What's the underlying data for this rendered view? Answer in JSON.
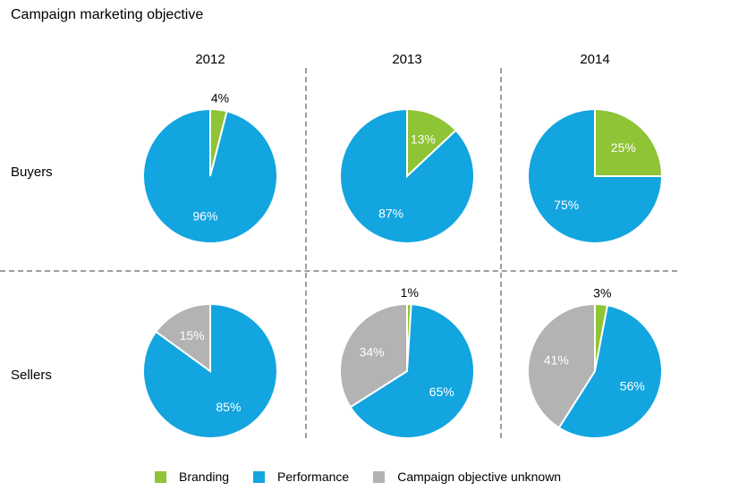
{
  "title": "Campaign marketing objective",
  "legend": {
    "items": [
      {
        "key": "branding",
        "label": "Branding"
      },
      {
        "key": "performance",
        "label": "Performance"
      },
      {
        "key": "unknown",
        "label": "Campaign objective unknown"
      }
    ]
  },
  "chart_data": {
    "type": "pie",
    "title": "Campaign marketing objective",
    "rows": [
      "Buyers",
      "Sellers"
    ],
    "columns": [
      "2012",
      "2013",
      "2014"
    ],
    "categories": [
      "Branding",
      "Performance",
      "Campaign objective unknown"
    ],
    "colors": {
      "branding": "#8EC435",
      "performance": "#12A5DF",
      "unknown": "#B3B3B3"
    },
    "label_colors": {
      "inside": "#FFFFFF",
      "outside": "#000000"
    },
    "slice_order": "clockwise-from-12",
    "unit": "%",
    "pies": [
      {
        "row": "Buyers",
        "column": "2012",
        "slices": [
          {
            "key": "branding",
            "value": 4
          },
          {
            "key": "performance",
            "value": 96
          },
          {
            "key": "unknown",
            "value": 0
          }
        ]
      },
      {
        "row": "Buyers",
        "column": "2013",
        "slices": [
          {
            "key": "branding",
            "value": 13
          },
          {
            "key": "performance",
            "value": 87
          },
          {
            "key": "unknown",
            "value": 0
          }
        ]
      },
      {
        "row": "Buyers",
        "column": "2014",
        "slices": [
          {
            "key": "branding",
            "value": 25
          },
          {
            "key": "performance",
            "value": 75
          },
          {
            "key": "unknown",
            "value": 0
          }
        ]
      },
      {
        "row": "Sellers",
        "column": "2012",
        "slices": [
          {
            "key": "branding",
            "value": 0
          },
          {
            "key": "performance",
            "value": 85
          },
          {
            "key": "unknown",
            "value": 15
          }
        ]
      },
      {
        "row": "Sellers",
        "column": "2013",
        "slices": [
          {
            "key": "branding",
            "value": 1
          },
          {
            "key": "performance",
            "value": 65
          },
          {
            "key": "unknown",
            "value": 34
          }
        ]
      },
      {
        "row": "Sellers",
        "column": "2014",
        "slices": [
          {
            "key": "branding",
            "value": 3
          },
          {
            "key": "performance",
            "value": 56
          },
          {
            "key": "unknown",
            "value": 41
          }
        ]
      }
    ]
  }
}
